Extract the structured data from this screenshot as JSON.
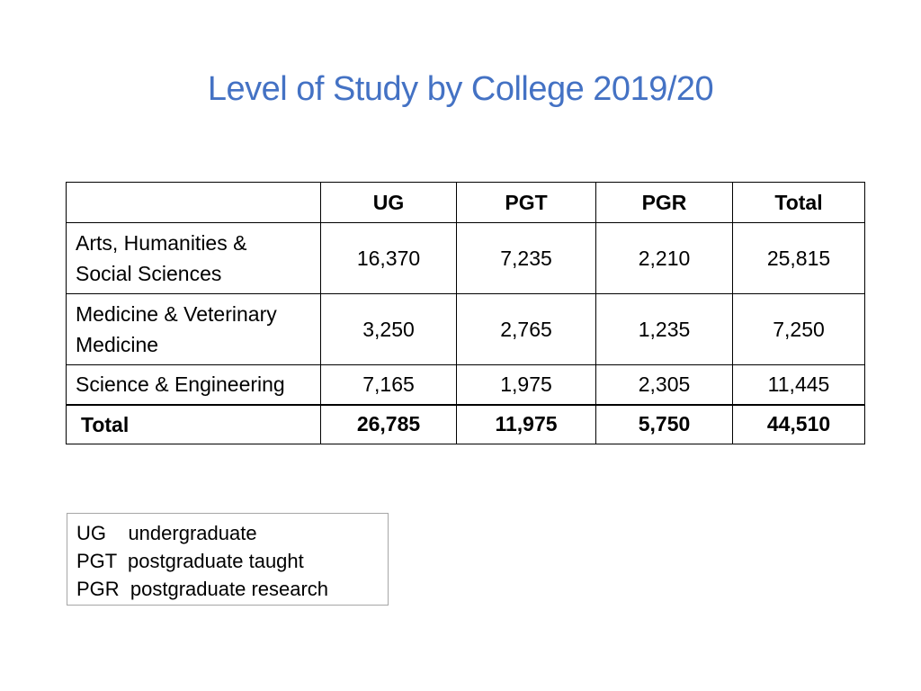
{
  "title": "Level of Study by College 2019/20",
  "table": {
    "headers": [
      "",
      "UG",
      "PGT",
      "PGR",
      "Total"
    ],
    "rows": [
      {
        "label_line1": "Arts, Humanities &",
        "label_line2": "Social Sciences",
        "ug": "16,370",
        "pgt": "7,235",
        "pgr": "2,210",
        "total": "25,815"
      },
      {
        "label_line1": "Medicine & Veterinary",
        "label_line2": "Medicine",
        "ug": "3,250",
        "pgt": "2,765",
        "pgr": "1,235",
        "total": "7,250"
      },
      {
        "label_line1": "Science & Engineering",
        "label_line2": "",
        "ug": "7,165",
        "pgt": "1,975",
        "pgr": "2,305",
        "total": "11,445"
      }
    ],
    "total_row": {
      "label": "Total",
      "ug": "26,785",
      "pgt": "11,975",
      "pgr": "5,750",
      "total": "44,510"
    }
  },
  "legend": {
    "lines": [
      "UG    undergraduate",
      "PGT  postgraduate taught",
      "PGR  postgraduate research"
    ]
  },
  "colors": {
    "title": "#4472c4",
    "border": "#000000",
    "legend_border": "#a6a6a6"
  }
}
